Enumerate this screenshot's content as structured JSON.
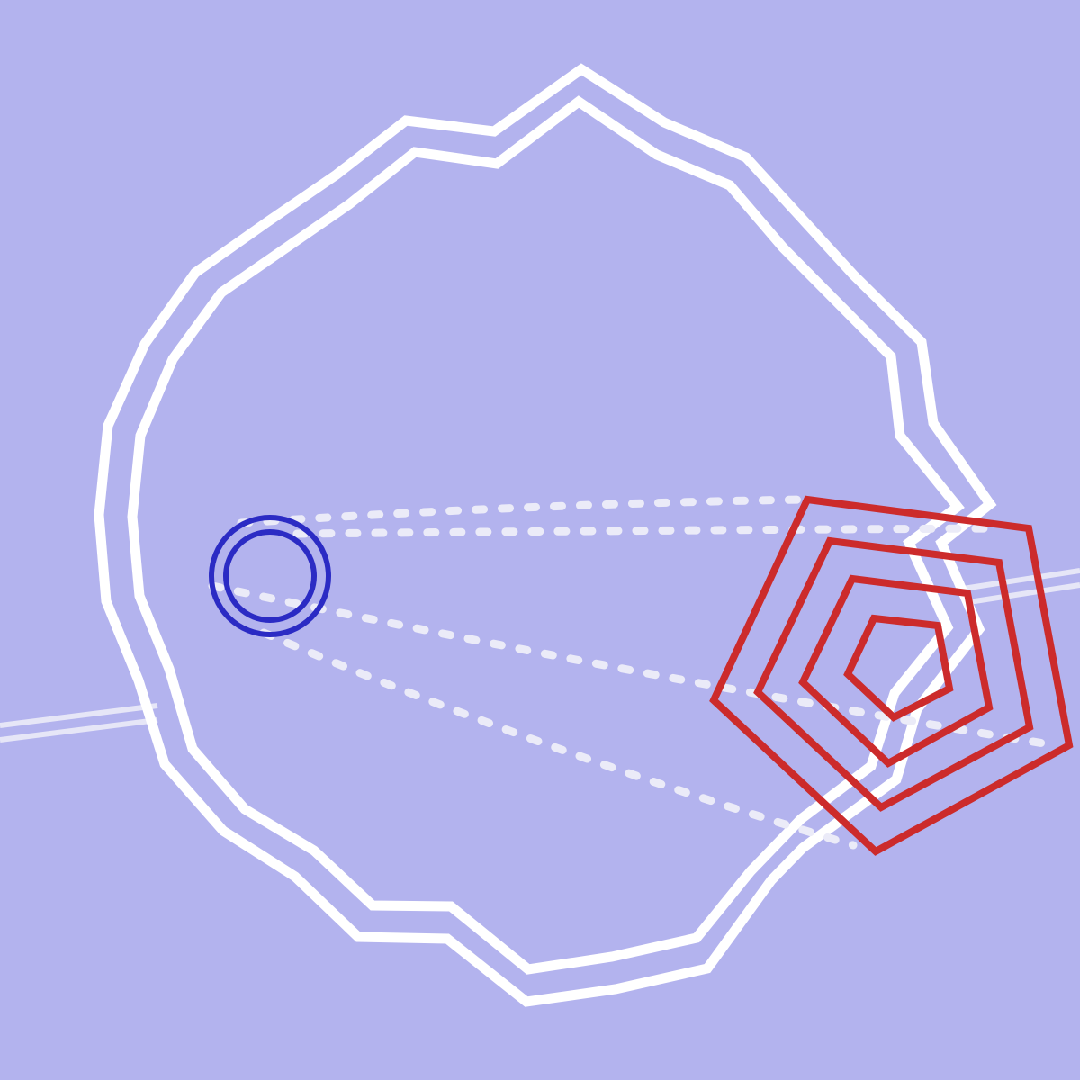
{
  "colors": {
    "background": "#b3b3ee",
    "outline": "#ffffff",
    "connector": "#ebebf8",
    "circle": "#2b2bc4",
    "pentagon": "#cc2b2b",
    "line": "#e6e6f7"
  },
  "shapes": {
    "outer_outline": "irregular-polygon",
    "inner_outline": "irregular-polygon",
    "source_marker": "concentric-circles",
    "target_marker": "concentric-pentagons",
    "connectors": "dotted-lines",
    "pentagon_rings": 4,
    "circle_rings": 2
  }
}
